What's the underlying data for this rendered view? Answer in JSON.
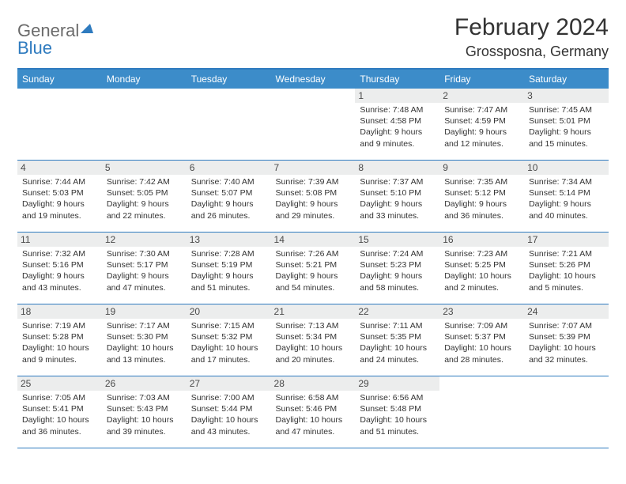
{
  "logo": {
    "line1": "General",
    "line2": "Blue"
  },
  "title": "February 2024",
  "location": "Grossposna, Germany",
  "colors": {
    "header_bg": "#3c8cc9",
    "border": "#2f7bbf",
    "daynum_bg": "#eceded",
    "text": "#333333",
    "logo_grey": "#6b6b6b",
    "logo_blue": "#2f7bbf",
    "background": "#ffffff"
  },
  "days_of_week": [
    "Sunday",
    "Monday",
    "Tuesday",
    "Wednesday",
    "Thursday",
    "Friday",
    "Saturday"
  ],
  "weeks": [
    [
      null,
      null,
      null,
      null,
      {
        "n": "1",
        "sunrise": "7:48 AM",
        "sunset": "4:58 PM",
        "dl1": "Daylight: 9 hours",
        "dl2": "and 9 minutes."
      },
      {
        "n": "2",
        "sunrise": "7:47 AM",
        "sunset": "4:59 PM",
        "dl1": "Daylight: 9 hours",
        "dl2": "and 12 minutes."
      },
      {
        "n": "3",
        "sunrise": "7:45 AM",
        "sunset": "5:01 PM",
        "dl1": "Daylight: 9 hours",
        "dl2": "and 15 minutes."
      }
    ],
    [
      {
        "n": "4",
        "sunrise": "7:44 AM",
        "sunset": "5:03 PM",
        "dl1": "Daylight: 9 hours",
        "dl2": "and 19 minutes."
      },
      {
        "n": "5",
        "sunrise": "7:42 AM",
        "sunset": "5:05 PM",
        "dl1": "Daylight: 9 hours",
        "dl2": "and 22 minutes."
      },
      {
        "n": "6",
        "sunrise": "7:40 AM",
        "sunset": "5:07 PM",
        "dl1": "Daylight: 9 hours",
        "dl2": "and 26 minutes."
      },
      {
        "n": "7",
        "sunrise": "7:39 AM",
        "sunset": "5:08 PM",
        "dl1": "Daylight: 9 hours",
        "dl2": "and 29 minutes."
      },
      {
        "n": "8",
        "sunrise": "7:37 AM",
        "sunset": "5:10 PM",
        "dl1": "Daylight: 9 hours",
        "dl2": "and 33 minutes."
      },
      {
        "n": "9",
        "sunrise": "7:35 AM",
        "sunset": "5:12 PM",
        "dl1": "Daylight: 9 hours",
        "dl2": "and 36 minutes."
      },
      {
        "n": "10",
        "sunrise": "7:34 AM",
        "sunset": "5:14 PM",
        "dl1": "Daylight: 9 hours",
        "dl2": "and 40 minutes."
      }
    ],
    [
      {
        "n": "11",
        "sunrise": "7:32 AM",
        "sunset": "5:16 PM",
        "dl1": "Daylight: 9 hours",
        "dl2": "and 43 minutes."
      },
      {
        "n": "12",
        "sunrise": "7:30 AM",
        "sunset": "5:17 PM",
        "dl1": "Daylight: 9 hours",
        "dl2": "and 47 minutes."
      },
      {
        "n": "13",
        "sunrise": "7:28 AM",
        "sunset": "5:19 PM",
        "dl1": "Daylight: 9 hours",
        "dl2": "and 51 minutes."
      },
      {
        "n": "14",
        "sunrise": "7:26 AM",
        "sunset": "5:21 PM",
        "dl1": "Daylight: 9 hours",
        "dl2": "and 54 minutes."
      },
      {
        "n": "15",
        "sunrise": "7:24 AM",
        "sunset": "5:23 PM",
        "dl1": "Daylight: 9 hours",
        "dl2": "and 58 minutes."
      },
      {
        "n": "16",
        "sunrise": "7:23 AM",
        "sunset": "5:25 PM",
        "dl1": "Daylight: 10 hours",
        "dl2": "and 2 minutes."
      },
      {
        "n": "17",
        "sunrise": "7:21 AM",
        "sunset": "5:26 PM",
        "dl1": "Daylight: 10 hours",
        "dl2": "and 5 minutes."
      }
    ],
    [
      {
        "n": "18",
        "sunrise": "7:19 AM",
        "sunset": "5:28 PM",
        "dl1": "Daylight: 10 hours",
        "dl2": "and 9 minutes."
      },
      {
        "n": "19",
        "sunrise": "7:17 AM",
        "sunset": "5:30 PM",
        "dl1": "Daylight: 10 hours",
        "dl2": "and 13 minutes."
      },
      {
        "n": "20",
        "sunrise": "7:15 AM",
        "sunset": "5:32 PM",
        "dl1": "Daylight: 10 hours",
        "dl2": "and 17 minutes."
      },
      {
        "n": "21",
        "sunrise": "7:13 AM",
        "sunset": "5:34 PM",
        "dl1": "Daylight: 10 hours",
        "dl2": "and 20 minutes."
      },
      {
        "n": "22",
        "sunrise": "7:11 AM",
        "sunset": "5:35 PM",
        "dl1": "Daylight: 10 hours",
        "dl2": "and 24 minutes."
      },
      {
        "n": "23",
        "sunrise": "7:09 AM",
        "sunset": "5:37 PM",
        "dl1": "Daylight: 10 hours",
        "dl2": "and 28 minutes."
      },
      {
        "n": "24",
        "sunrise": "7:07 AM",
        "sunset": "5:39 PM",
        "dl1": "Daylight: 10 hours",
        "dl2": "and 32 minutes."
      }
    ],
    [
      {
        "n": "25",
        "sunrise": "7:05 AM",
        "sunset": "5:41 PM",
        "dl1": "Daylight: 10 hours",
        "dl2": "and 36 minutes."
      },
      {
        "n": "26",
        "sunrise": "7:03 AM",
        "sunset": "5:43 PM",
        "dl1": "Daylight: 10 hours",
        "dl2": "and 39 minutes."
      },
      {
        "n": "27",
        "sunrise": "7:00 AM",
        "sunset": "5:44 PM",
        "dl1": "Daylight: 10 hours",
        "dl2": "and 43 minutes."
      },
      {
        "n": "28",
        "sunrise": "6:58 AM",
        "sunset": "5:46 PM",
        "dl1": "Daylight: 10 hours",
        "dl2": "and 47 minutes."
      },
      {
        "n": "29",
        "sunrise": "6:56 AM",
        "sunset": "5:48 PM",
        "dl1": "Daylight: 10 hours",
        "dl2": "and 51 minutes."
      },
      null,
      null
    ]
  ],
  "labels": {
    "sunrise": "Sunrise:",
    "sunset": "Sunset:"
  }
}
